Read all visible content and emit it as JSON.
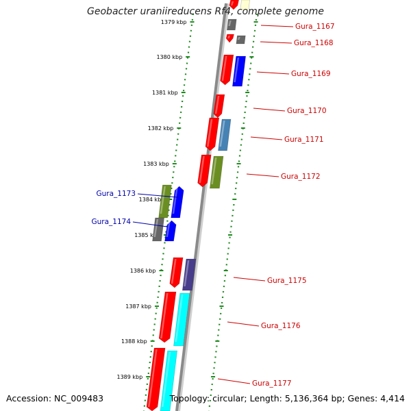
{
  "title": "Geobacter uraniireducens Rf4, complete genome",
  "footer": {
    "accession": "Accession: NC_009483",
    "summary": "Topology: circular; Length: 5,136,364 bp; Genes: 4,414"
  },
  "ruler": {
    "ticks": [
      "1379 kbp",
      "1380 kbp",
      "1381 kbp",
      "1382 kbp",
      "1383 kbp",
      "1384 kbp",
      "1385 kbp",
      "1386 kbp",
      "1387 kbp",
      "1388 kbp",
      "1389 kbp"
    ]
  },
  "colors": {
    "backbone": "#8a8a8a",
    "ruler_dots": "#1f8a1f",
    "forward_label": "#cc0000",
    "reverse_label": "#0000aa",
    "red": "#ff0000",
    "blue": "#0000ff",
    "gray": "#666666",
    "olive": "#6b8e23",
    "steelblue": "#4682b4",
    "slateblue": "#483d8b",
    "cyan": "#00ffff",
    "cream": "#ffffd0"
  },
  "genes": [
    {
      "name": "Gura_1167",
      "strand": "forward"
    },
    {
      "name": "Gura_1168",
      "strand": "forward"
    },
    {
      "name": "Gura_1169",
      "strand": "forward"
    },
    {
      "name": "Gura_1170",
      "strand": "forward"
    },
    {
      "name": "Gura_1171",
      "strand": "forward"
    },
    {
      "name": "Gura_1172",
      "strand": "forward"
    },
    {
      "name": "Gura_1173",
      "strand": "reverse"
    },
    {
      "name": "Gura_1174",
      "strand": "reverse"
    },
    {
      "name": "Gura_1175",
      "strand": "forward"
    },
    {
      "name": "Gura_1176",
      "strand": "forward"
    },
    {
      "name": "Gura_1177",
      "strand": "forward"
    }
  ]
}
